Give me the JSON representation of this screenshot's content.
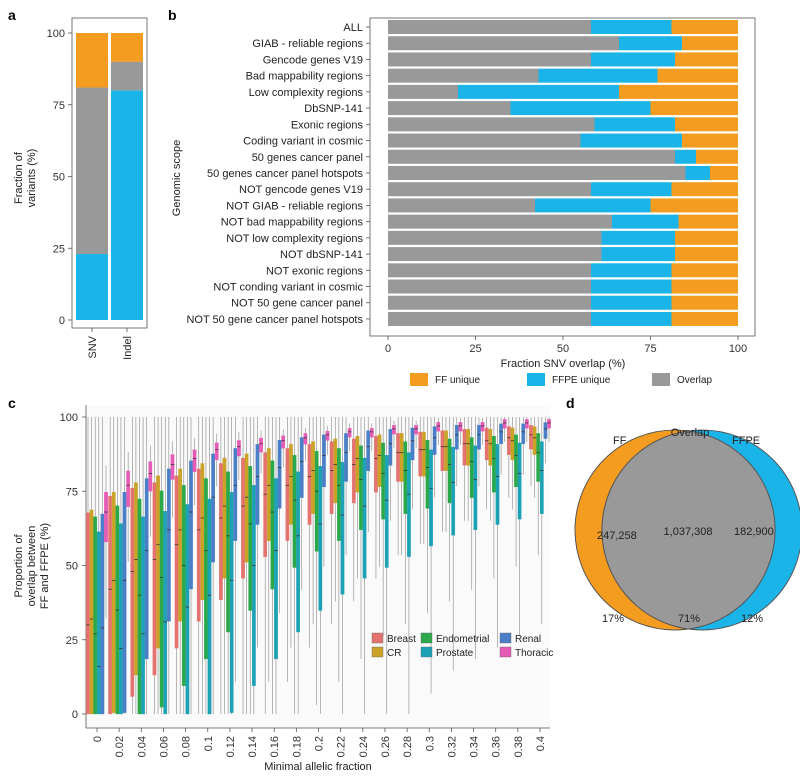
{
  "panels": {
    "a": "a",
    "b": "b",
    "c": "c",
    "d": "d"
  },
  "colors": {
    "ff": "#F39C1F",
    "ffpe": "#1BB4E8",
    "overlap": "#999999"
  },
  "chart_data": [
    {
      "id": "a",
      "type": "bar",
      "stacked": true,
      "categories": [
        "SNV",
        "Indel"
      ],
      "series": [
        {
          "name": "FFPE unique",
          "values": [
            23,
            80
          ]
        },
        {
          "name": "Overlap",
          "values": [
            58,
            10
          ]
        },
        {
          "name": "FF unique",
          "values": [
            19,
            10
          ]
        }
      ],
      "ylabel": "Fraction of variants (%)",
      "ylabel_lines": [
        "Fraction of",
        "variants (%)"
      ],
      "yticks": [
        "0",
        "25",
        "50",
        "75",
        "100"
      ],
      "ylim": [
        0,
        100
      ]
    },
    {
      "id": "b",
      "type": "bar",
      "orientation": "horizontal",
      "stacked": true,
      "categories": [
        "ALL",
        "GIAB - reliable regions",
        "Gencode genes V19",
        "Bad mappability regions",
        "Low complexity regions",
        "DbSNP-141",
        "Exonic regions",
        "Coding variant in cosmic",
        "50 genes cancer panel",
        "50 genes cancer panel hotspots",
        "NOT gencode genes V19",
        "NOT GIAB - reliable regions",
        "NOT bad mappability regions",
        "NOT low complexity regions",
        "NOT dbSNP-141",
        "NOT exonic regions",
        "NOT conding variant in cosmic",
        "NOT 50 gene cancer panel",
        "NOT 50 gene cancer panel hotspots"
      ],
      "series": [
        {
          "name": "Overlap",
          "values": [
            58,
            66,
            58,
            43,
            20,
            35,
            59,
            55,
            82,
            85,
            58,
            42,
            64,
            61,
            61,
            58,
            58,
            58,
            58
          ]
        },
        {
          "name": "FFPE unique",
          "values": [
            23,
            18,
            24,
            34,
            46,
            40,
            23,
            29,
            6,
            7,
            23,
            33,
            19,
            21,
            21,
            23,
            23,
            23,
            23
          ]
        },
        {
          "name": "FF unique",
          "values": [
            19,
            16,
            18,
            23,
            34,
            25,
            18,
            16,
            12,
            8,
            19,
            25,
            17,
            18,
            18,
            19,
            19,
            19,
            19
          ]
        }
      ],
      "xlabel": "Fraction SNV overlap (%)",
      "ylabel": "Genomic scope",
      "xticks": [
        "0",
        "25",
        "50",
        "75",
        "100"
      ],
      "xlim": [
        0,
        100
      ],
      "legend": [
        "FF unique",
        "FFPE unique",
        "Overlap"
      ],
      "legend_position": "bottom"
    },
    {
      "id": "c",
      "type": "box",
      "x": [
        "0",
        "0.02",
        "0.04",
        "0.06",
        "0.08",
        "0.1",
        "0.12",
        "0.14",
        "0.16",
        "0.18",
        "0.2",
        "0.22",
        "0.24",
        "0.26",
        "0.28",
        "0.3",
        "0.32",
        "0.34",
        "0.36",
        "0.38",
        "0.4"
      ],
      "xlabel": "Minimal allelic fraction",
      "ylabel": "Proportion of overlap between FF and FFPE (%)",
      "ylabel_lines": [
        "Proportion of",
        "overlap between",
        "FF and FFPE (%)"
      ],
      "yticks": [
        "0",
        "25",
        "50",
        "75",
        "100"
      ],
      "ylim": [
        0,
        100
      ],
      "legend_position": "bottom-right",
      "series": [
        {
          "name": "Breast",
          "color": "#E4736F",
          "values": [
            30,
            42,
            48,
            52,
            57,
            62,
            66,
            70,
            74,
            77,
            80,
            82,
            84,
            86,
            88,
            89,
            90,
            91,
            92,
            93,
            94
          ]
        },
        {
          "name": "CR",
          "color": "#C9A227",
          "values": [
            32,
            45,
            52,
            57,
            62,
            66,
            70,
            73,
            77,
            80,
            82,
            84,
            86,
            87,
            88,
            89,
            90,
            91,
            91,
            92,
            93
          ]
        },
        {
          "name": "Endometrial",
          "color": "#2BA84A",
          "values": [
            27,
            35,
            40,
            46,
            50,
            55,
            60,
            64,
            68,
            72,
            75,
            77,
            79,
            81,
            82,
            83,
            84,
            85,
            86,
            87,
            88
          ]
        },
        {
          "name": "Prostate",
          "color": "#1DA1B5",
          "values": [
            16,
            22,
            27,
            31,
            36,
            40,
            45,
            50,
            55,
            60,
            64,
            67,
            70,
            72,
            74,
            76,
            78,
            79,
            80,
            81,
            82
          ]
        },
        {
          "name": "Renal",
          "color": "#4A7EC6",
          "values": [
            29,
            45,
            55,
            62,
            68,
            73,
            77,
            80,
            83,
            85,
            87,
            88,
            90,
            91,
            92,
            93,
            94,
            94,
            95,
            95,
            96
          ]
        },
        {
          "name": "Thoracic",
          "color": "#E55BB5",
          "values": [
            68,
            77,
            81,
            84,
            86,
            89,
            90,
            91,
            92,
            93,
            94,
            95,
            95,
            96,
            96,
            97,
            97,
            97,
            98,
            98,
            98
          ]
        }
      ]
    },
    {
      "id": "d",
      "type": "venn",
      "sets": [
        "FF",
        "Overlap",
        "FFPE"
      ],
      "counts": [
        "247,258",
        "1,037,308",
        "182,900"
      ],
      "percents": [
        "17%",
        "71%",
        "12%"
      ]
    }
  ]
}
